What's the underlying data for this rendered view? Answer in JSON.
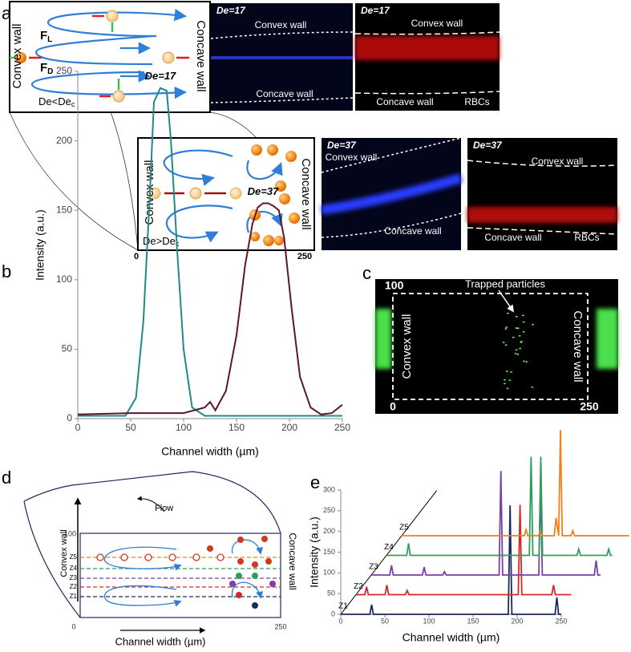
{
  "panel_a": {
    "label": "a",
    "schematic_low": {
      "convex": "Convex wall",
      "concave": "Concave wall",
      "lift": {
        "symbol": "F",
        "subscript": "L"
      },
      "drag": {
        "symbol": "F",
        "subscript": "D"
      },
      "regime": {
        "text": "De<De",
        "subscript": "c"
      }
    },
    "image_low_dye": {
      "de": "De=17",
      "convex": "Convex wall",
      "concave": "Concave wall"
    },
    "image_low_rbc": {
      "de": "De=17",
      "convex": "Convex wall",
      "concave": "Concave wall",
      "cells": "RBCs"
    },
    "schematic_high": {
      "convex": "Convex wall",
      "concave": "Concave wall",
      "regime": {
        "text": "De>De",
        "subscript": "c"
      },
      "x_start": "0",
      "x_end": "250"
    },
    "image_high_dye": {
      "de": "De=37",
      "convex": "Convex wall",
      "concave": "Concave wall"
    },
    "image_high_rbc": {
      "de": "De=37",
      "convex": "Convex wall",
      "concave": "Concave wall",
      "cells": "RBCs"
    }
  },
  "chart_data": [
    {
      "type": "line",
      "label": "b",
      "xlabel": "Channel width (µm)",
      "ylabel": "Intensity (a.u.)",
      "xlim": [
        0,
        250
      ],
      "ylim": [
        0,
        250
      ],
      "xticks": [
        0,
        50,
        100,
        150,
        200,
        250
      ],
      "yticks": [
        0,
        50,
        100,
        150,
        200,
        250
      ],
      "series": [
        {
          "name": "De=17",
          "color": "#1f8a86",
          "x": [
            0,
            45,
            55,
            62,
            68,
            72,
            78,
            84,
            88,
            94,
            100,
            108,
            120,
            250
          ],
          "values": [
            2,
            2,
            15,
            70,
            160,
            228,
            238,
            236,
            200,
            120,
            50,
            8,
            2,
            2
          ]
        },
        {
          "name": "De=37",
          "color": "#5e1530",
          "x": [
            0,
            50,
            100,
            120,
            125,
            130,
            140,
            150,
            158,
            165,
            170,
            175,
            180,
            185,
            190,
            195,
            202,
            210,
            220,
            230,
            240,
            250
          ],
          "values": [
            3,
            4,
            4,
            8,
            12,
            6,
            20,
            60,
            110,
            140,
            152,
            155,
            155,
            153,
            150,
            130,
            80,
            30,
            8,
            3,
            4,
            10
          ]
        }
      ]
    },
    {
      "type": "waterfall",
      "label": "e",
      "xlabel": "Channel width (µm)",
      "ylabel": "Intensity (a.u.)",
      "xlim": [
        0,
        250
      ],
      "ylim": [
        0,
        300
      ],
      "xticks": [
        0,
        50,
        100,
        150,
        200,
        250
      ],
      "yticks": [
        0,
        50,
        100,
        150,
        200,
        250,
        300
      ],
      "series": [
        {
          "name": "Z1",
          "color": "#1b2a5e",
          "x": [
            0,
            33,
            35,
            37,
            190,
            192,
            194,
            243,
            245,
            247,
            250
          ],
          "values": [
            0,
            0,
            23,
            0,
            0,
            263,
            0,
            0,
            41,
            0,
            0
          ]
        },
        {
          "name": "Z2",
          "color": "#d62728",
          "x": [
            0,
            10,
            12,
            14,
            33,
            35,
            37,
            56,
            58,
            60,
            184,
            186,
            188,
            222,
            224,
            226,
            244
          ],
          "values": [
            0,
            0,
            19,
            0,
            0,
            23,
            0,
            0,
            10,
            0,
            0,
            217,
            0,
            0,
            23,
            0,
            0
          ]
        },
        {
          "name": "Z3",
          "color": "#7b3fa8",
          "x": [
            0,
            21,
            23,
            25,
            58,
            60,
            62,
            81,
            83,
            85,
            145,
            147,
            149,
            190,
            192,
            194,
            253,
            255,
            257,
            260
          ],
          "values": [
            0,
            0,
            23,
            0,
            0,
            19,
            0,
            0,
            8,
            0,
            0,
            251,
            0,
            0,
            219,
            0,
            0,
            35,
            0,
            0
          ]
        },
        {
          "name": "Z4",
          "color": "#2ca05a",
          "x": [
            0,
            23,
            25,
            27,
            162,
            164,
            166,
            173,
            175,
            177,
            216,
            218,
            220,
            250,
            252,
            254,
            256
          ],
          "values": [
            0,
            0,
            29,
            0,
            0,
            238,
            0,
            0,
            238,
            0,
            0,
            15,
            0,
            0,
            15,
            0,
            0
          ]
        },
        {
          "name": "Z5",
          "color": "#f07f1c",
          "x": [
            0,
            139,
            141,
            143,
            155,
            157,
            159,
            173,
            175,
            178,
            180,
            182,
            192,
            194,
            196,
            258
          ],
          "values": [
            0,
            0,
            15,
            0,
            0,
            10,
            0,
            0,
            43,
            0,
            255,
            0,
            0,
            12,
            0,
            0
          ]
        }
      ]
    }
  ],
  "panel_c": {
    "label": "c",
    "top": "100",
    "left_bottom": "0",
    "right_bottom": "250",
    "annotation": "Trapped particles",
    "convex": "Convex wall",
    "concave": "Concave wall"
  },
  "panel_d": {
    "label": "d",
    "flow": "Flow",
    "top": "100",
    "levels": [
      "Z5",
      "Z4",
      "Z3",
      "Z2",
      "Z1"
    ],
    "bottom": "0",
    "right": "250",
    "convex": "Convex wall",
    "concave": "Concave wall",
    "xlabel": "Channel width (µm)"
  }
}
